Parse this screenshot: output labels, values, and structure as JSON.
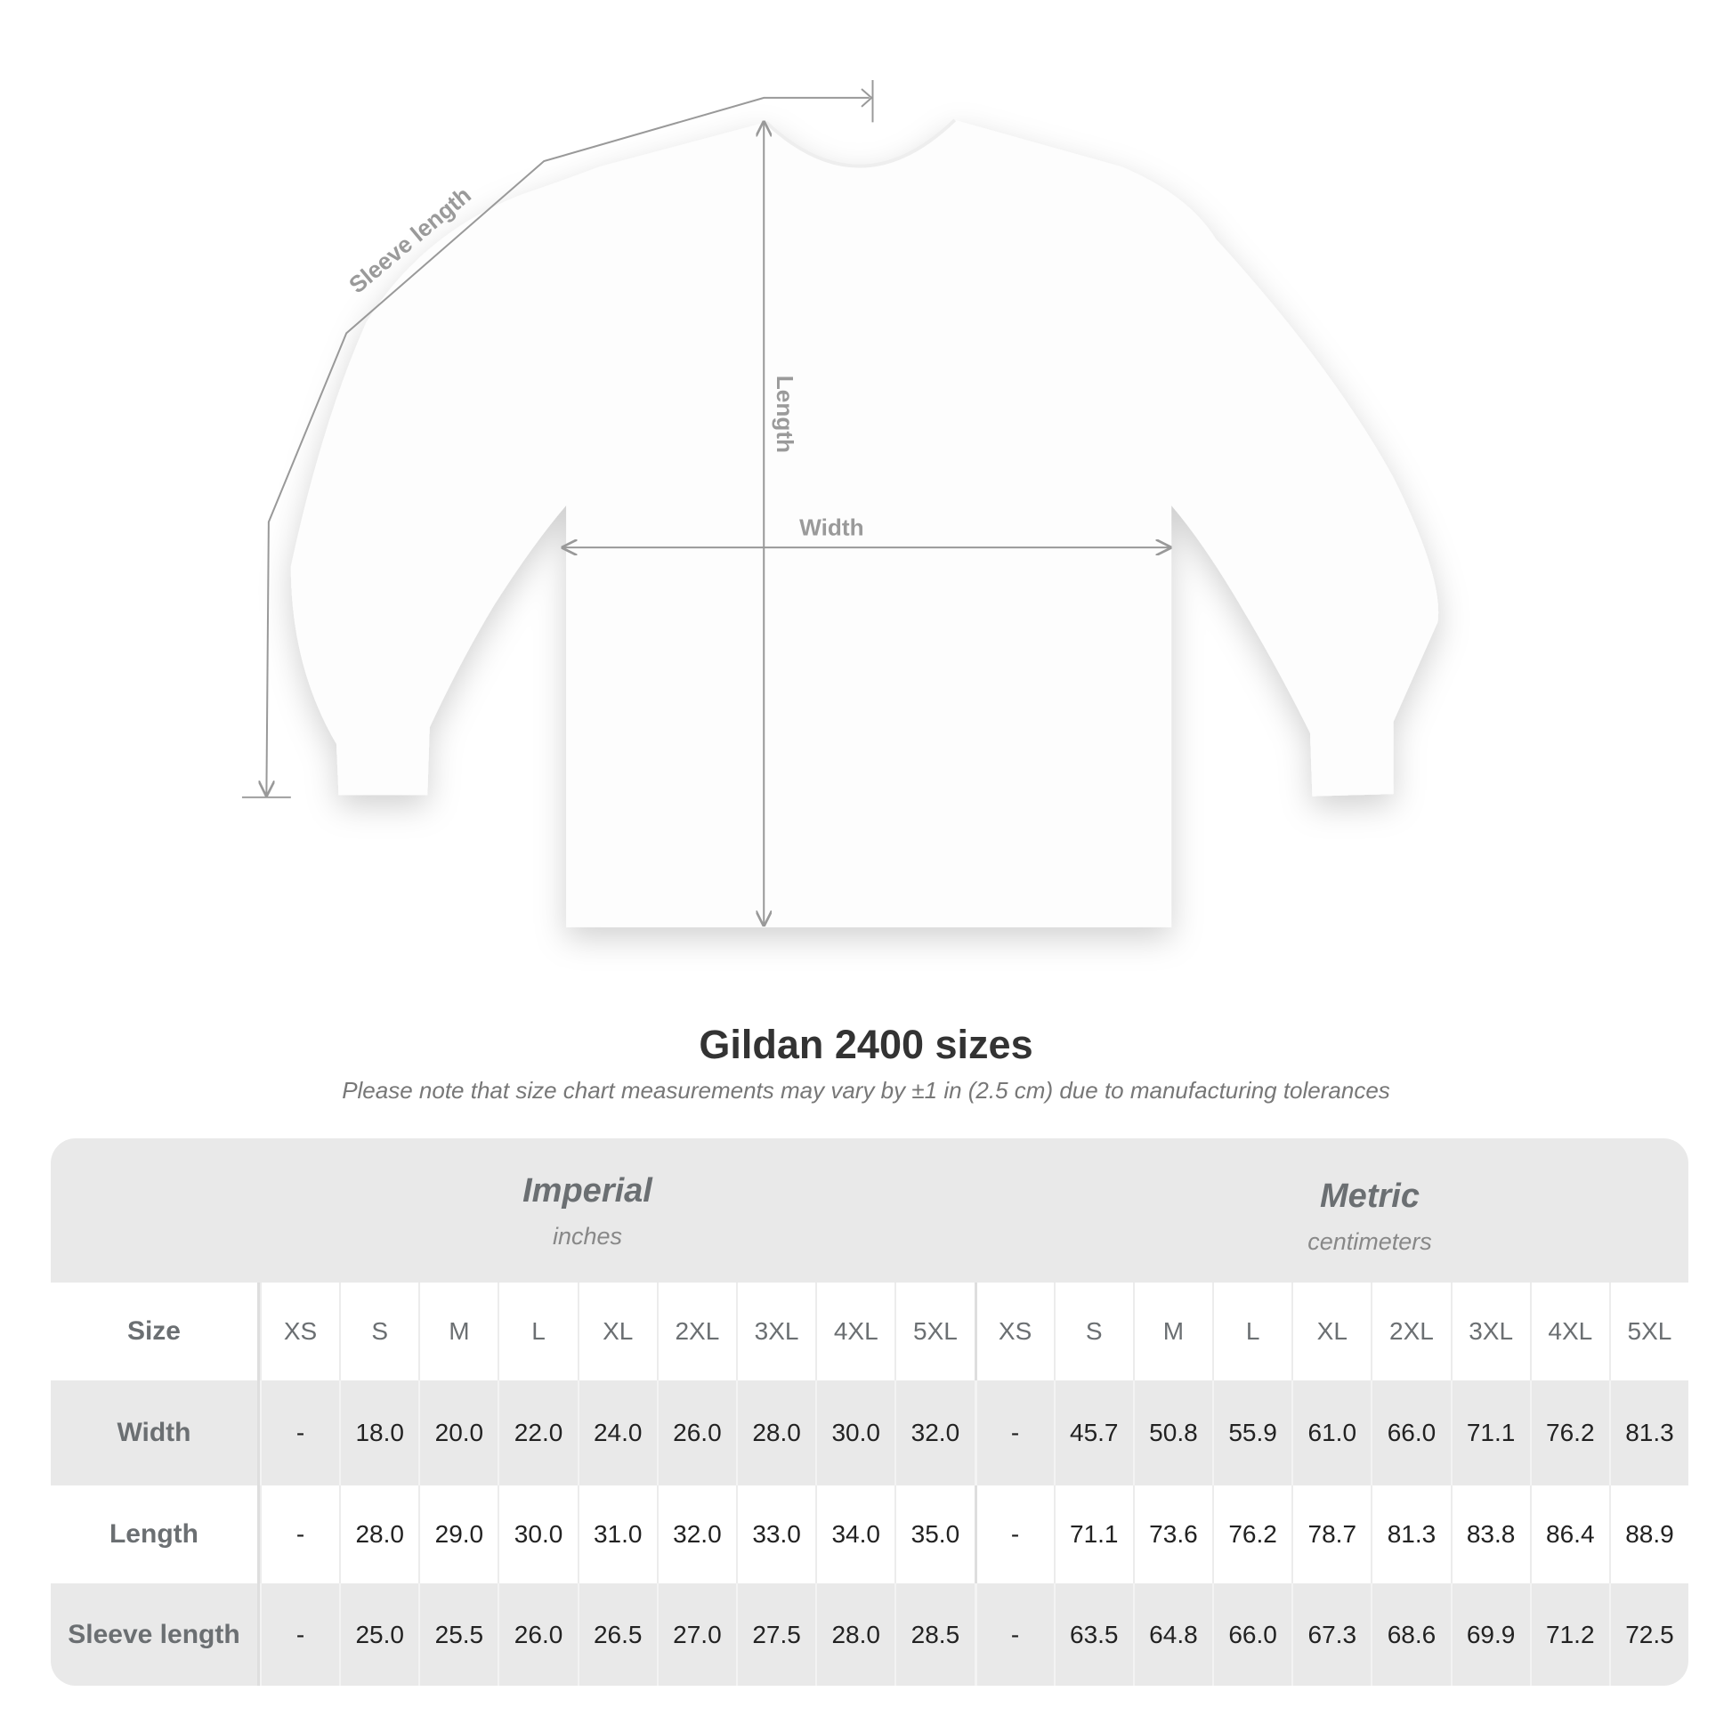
{
  "diagram": {
    "sleeve_label": "Sleeve length",
    "length_label": "Length",
    "width_label": "Width"
  },
  "title": "Gildan 2400 sizes",
  "note": "Please note that size chart measurements may vary by ±1 in (2.5 cm) due to manufacturing tolerances",
  "table": {
    "imperial": {
      "name": "Imperial",
      "unit": "inches"
    },
    "metric": {
      "name": "Metric",
      "unit": "centimeters"
    },
    "size_label": "Size",
    "sizes": [
      "XS",
      "S",
      "M",
      "L",
      "XL",
      "2XL",
      "3XL",
      "4XL",
      "5XL",
      "XS",
      "S",
      "M",
      "L",
      "XL",
      "2XL",
      "3XL",
      "4XL",
      "5XL"
    ],
    "rows": [
      {
        "label": "Width",
        "values": [
          "-",
          "18.0",
          "20.0",
          "22.0",
          "24.0",
          "26.0",
          "28.0",
          "30.0",
          "32.0",
          "-",
          "45.7",
          "50.8",
          "55.9",
          "61.0",
          "66.0",
          "71.1",
          "76.2",
          "81.3"
        ]
      },
      {
        "label": "Length",
        "values": [
          "-",
          "28.0",
          "29.0",
          "30.0",
          "31.0",
          "32.0",
          "33.0",
          "34.0",
          "35.0",
          "-",
          "71.1",
          "73.6",
          "76.2",
          "78.7",
          "81.3",
          "83.8",
          "86.4",
          "88.9"
        ]
      },
      {
        "label": "Sleeve length",
        "values": [
          "-",
          "25.0",
          "25.5",
          "26.0",
          "26.5",
          "27.0",
          "27.5",
          "28.0",
          "28.5",
          "-",
          "63.5",
          "64.8",
          "66.0",
          "67.3",
          "68.6",
          "69.9",
          "71.2",
          "72.5"
        ]
      }
    ]
  },
  "colors": {
    "band": "#e9e9e9",
    "label": "#6b6f72",
    "measure_line": "#999999"
  }
}
